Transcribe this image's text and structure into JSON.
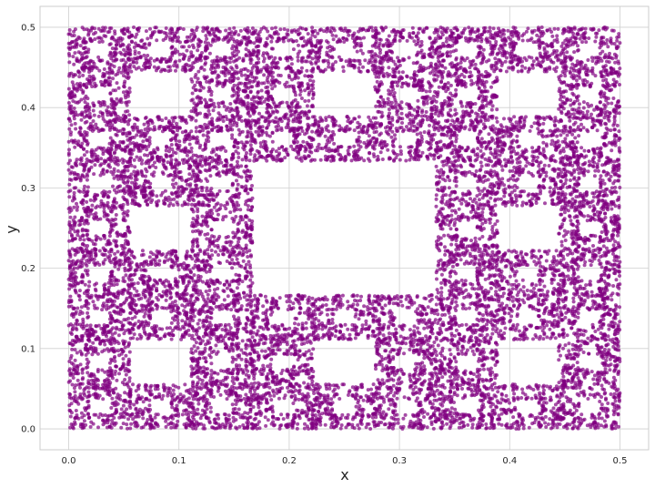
{
  "chart_data": {
    "type": "scatter",
    "title": "",
    "xlabel": "x",
    "ylabel": "y",
    "xlim": [
      -0.026,
      0.526
    ],
    "ylim": [
      -0.026,
      0.526
    ],
    "xticks": [
      0.0,
      0.1,
      0.2,
      0.3,
      0.4,
      0.5
    ],
    "yticks": [
      0.0,
      0.1,
      0.2,
      0.3,
      0.4,
      0.5
    ],
    "xtick_labels": [
      "0.0",
      "0.1",
      "0.2",
      "0.3",
      "0.4",
      "0.5"
    ],
    "ytick_labels": [
      "0.0",
      "0.1",
      "0.2",
      "0.3",
      "0.4",
      "0.5"
    ],
    "grid": true,
    "point_color": "#800080",
    "point_alpha": 0.7,
    "pattern": {
      "name": "Sierpinski carpet",
      "x_range": [
        0.0,
        0.5
      ],
      "y_range": [
        0.0,
        0.5
      ],
      "recursion_levels": 3,
      "approx_point_count": 14000
    }
  }
}
